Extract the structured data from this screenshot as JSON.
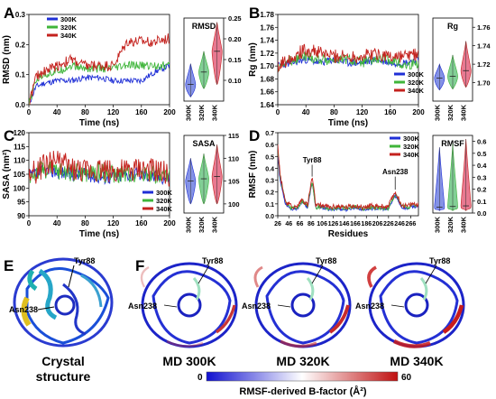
{
  "figure": {
    "panel_letters": [
      "A",
      "B",
      "C",
      "D",
      "E",
      "F"
    ],
    "colors": {
      "300K": "#1f2fd6",
      "320K": "#3fb53a",
      "340K": "#c4221e"
    },
    "violin_colors": {
      "300K": "#6f7fe0",
      "320K": "#6cc784",
      "340K": "#e4627e"
    }
  },
  "chart_data": [
    {
      "id": "A_line",
      "type": "line",
      "xlabel": "Time (ns)",
      "ylabel": "RMSD (nm)",
      "xlim": [
        0,
        200
      ],
      "ylim": [
        0,
        0.3
      ],
      "xticks": [
        0,
        40,
        80,
        120,
        160,
        200
      ],
      "yticks": [
        0.0,
        0.1,
        0.2,
        0.3
      ],
      "legend": [
        "300K",
        "320K",
        "340K"
      ],
      "series": [
        {
          "name": "300K",
          "x": [
            0,
            10,
            20,
            40,
            60,
            80,
            100,
            120,
            140,
            160,
            180,
            200
          ],
          "values": [
            0.0,
            0.06,
            0.07,
            0.08,
            0.08,
            0.09,
            0.09,
            0.08,
            0.08,
            0.08,
            0.11,
            0.13
          ]
        },
        {
          "name": "320K",
          "x": [
            0,
            10,
            20,
            40,
            60,
            80,
            100,
            120,
            140,
            160,
            180,
            200
          ],
          "values": [
            0.0,
            0.08,
            0.1,
            0.11,
            0.13,
            0.12,
            0.12,
            0.12,
            0.13,
            0.13,
            0.13,
            0.13
          ]
        },
        {
          "name": "340K",
          "x": [
            0,
            10,
            20,
            40,
            60,
            80,
            100,
            120,
            140,
            160,
            180,
            200
          ],
          "values": [
            0.0,
            0.09,
            0.11,
            0.13,
            0.15,
            0.13,
            0.13,
            0.13,
            0.21,
            0.21,
            0.21,
            0.22
          ]
        }
      ]
    },
    {
      "id": "A_violin",
      "type": "violin",
      "title": "RMSD",
      "categories": [
        "300K",
        "320K",
        "340K"
      ],
      "ylim": [
        0.05,
        0.25
      ],
      "yticks": [
        0.1,
        0.15,
        0.2,
        0.25
      ],
      "medians": [
        0.09,
        0.12,
        0.17
      ],
      "mins": [
        0.06,
        0.08,
        0.09
      ],
      "maxs": [
        0.14,
        0.17,
        0.24
      ]
    },
    {
      "id": "B_line",
      "type": "line",
      "xlabel": "Time (ns)",
      "ylabel": "Rg (nm)",
      "xlim": [
        0,
        200
      ],
      "ylim": [
        1.64,
        1.78
      ],
      "xticks": [
        0,
        40,
        80,
        120,
        160,
        200
      ],
      "yticks": [
        1.64,
        1.66,
        1.68,
        1.7,
        1.72,
        1.74,
        1.76,
        1.78
      ],
      "legend": [
        "300K",
        "320K",
        "340K"
      ],
      "series": [
        {
          "name": "300K",
          "x": [
            0,
            20,
            40,
            60,
            80,
            100,
            120,
            140,
            160,
            180,
            200
          ],
          "values": [
            1.7,
            1.705,
            1.71,
            1.705,
            1.71,
            1.705,
            1.705,
            1.71,
            1.705,
            1.705,
            1.71
          ]
        },
        {
          "name": "320K",
          "x": [
            0,
            20,
            40,
            60,
            80,
            100,
            120,
            140,
            160,
            180,
            200
          ],
          "values": [
            1.7,
            1.71,
            1.715,
            1.71,
            1.71,
            1.71,
            1.705,
            1.71,
            1.71,
            1.7,
            1.705
          ]
        },
        {
          "name": "340K",
          "x": [
            0,
            20,
            40,
            60,
            80,
            100,
            120,
            140,
            160,
            180,
            200
          ],
          "values": [
            1.7,
            1.715,
            1.725,
            1.72,
            1.715,
            1.715,
            1.715,
            1.72,
            1.715,
            1.715,
            1.72
          ]
        }
      ]
    },
    {
      "id": "B_violin",
      "type": "violin",
      "title": "Rg",
      "categories": [
        "300K",
        "320K",
        "340K"
      ],
      "ylim": [
        1.68,
        1.77
      ],
      "yticks": [
        1.7,
        1.72,
        1.74,
        1.76
      ],
      "medians": [
        1.705,
        1.707,
        1.713
      ],
      "mins": [
        1.692,
        1.693,
        1.695
      ],
      "maxs": [
        1.72,
        1.73,
        1.745
      ]
    },
    {
      "id": "C_line",
      "type": "line",
      "xlabel": "Time (ns)",
      "ylabel": "SASA (nm²)",
      "xlim": [
        0,
        200
      ],
      "ylim": [
        90,
        120
      ],
      "xticks": [
        0,
        40,
        80,
        120,
        160,
        200
      ],
      "yticks": [
        90,
        95,
        100,
        105,
        110,
        115,
        120
      ],
      "legend": [
        "300K",
        "320K",
        "340K"
      ],
      "series": [
        {
          "name": "300K",
          "x": [
            0,
            20,
            40,
            60,
            80,
            100,
            120,
            140,
            160,
            180,
            200
          ],
          "values": [
            104,
            106,
            106,
            105,
            105,
            104,
            104,
            105,
            105,
            104,
            104
          ]
        },
        {
          "name": "320K",
          "x": [
            0,
            20,
            40,
            60,
            80,
            100,
            120,
            140,
            160,
            180,
            200
          ],
          "values": [
            104,
            107,
            106,
            106,
            105,
            106,
            105,
            105,
            106,
            105,
            104
          ]
        },
        {
          "name": "340K",
          "x": [
            0,
            20,
            40,
            60,
            80,
            100,
            120,
            140,
            160,
            180,
            200
          ],
          "values": [
            104,
            108,
            110,
            107,
            106,
            107,
            106,
            106,
            107,
            106,
            105
          ]
        }
      ]
    },
    {
      "id": "C_violin",
      "type": "violin",
      "title": "SASA",
      "categories": [
        "300K",
        "320K",
        "340K"
      ],
      "ylim": [
        98,
        115
      ],
      "yticks": [
        100,
        105,
        110,
        115
      ],
      "medians": [
        105,
        105.5,
        106
      ],
      "mins": [
        100,
        100,
        100
      ],
      "maxs": [
        110,
        111,
        113
      ]
    },
    {
      "id": "D_line",
      "type": "line",
      "xlabel": "Residues",
      "ylabel": "RMSF (nm)",
      "xlim": [
        26,
        280
      ],
      "ylim": [
        0,
        0.7
      ],
      "xticks": [
        26,
        46,
        66,
        86,
        106,
        126,
        146,
        166,
        186,
        206,
        226,
        246,
        266
      ],
      "yticks": [
        0.0,
        0.1,
        0.2,
        0.3,
        0.4,
        0.5,
        0.6,
        0.7
      ],
      "legend": [
        "300K",
        "320K",
        "340K"
      ],
      "annotations": [
        "Tyr88",
        "Asn238"
      ],
      "series": [
        {
          "name": "300K",
          "x": [
            26,
            30,
            40,
            50,
            60,
            70,
            80,
            88,
            95,
            106,
            120,
            135,
            150,
            166,
            180,
            195,
            210,
            225,
            238,
            250,
            260,
            270,
            280
          ],
          "values": [
            0.55,
            0.3,
            0.1,
            0.06,
            0.05,
            0.12,
            0.07,
            0.28,
            0.06,
            0.07,
            0.05,
            0.06,
            0.05,
            0.07,
            0.05,
            0.06,
            0.06,
            0.05,
            0.17,
            0.07,
            0.06,
            0.08,
            0.07
          ]
        },
        {
          "name": "320K",
          "x": [
            26,
            30,
            40,
            50,
            60,
            70,
            80,
            88,
            95,
            106,
            120,
            135,
            150,
            166,
            180,
            195,
            210,
            225,
            238,
            250,
            260,
            270,
            280
          ],
          "values": [
            0.58,
            0.33,
            0.11,
            0.07,
            0.06,
            0.13,
            0.08,
            0.3,
            0.07,
            0.08,
            0.06,
            0.07,
            0.06,
            0.08,
            0.06,
            0.07,
            0.07,
            0.06,
            0.18,
            0.08,
            0.07,
            0.09,
            0.08
          ]
        },
        {
          "name": "340K",
          "x": [
            26,
            30,
            40,
            50,
            60,
            70,
            80,
            88,
            95,
            106,
            120,
            135,
            150,
            166,
            180,
            195,
            210,
            225,
            238,
            250,
            260,
            270,
            280
          ],
          "values": [
            0.62,
            0.35,
            0.12,
            0.08,
            0.07,
            0.14,
            0.09,
            0.33,
            0.08,
            0.09,
            0.07,
            0.08,
            0.07,
            0.09,
            0.07,
            0.08,
            0.08,
            0.07,
            0.2,
            0.09,
            0.08,
            0.1,
            0.09
          ]
        }
      ]
    },
    {
      "id": "D_violin",
      "type": "violin",
      "title": "RMSF",
      "categories": [
        "300K",
        "320K",
        "340K"
      ],
      "ylim": [
        0,
        0.65
      ],
      "yticks": [
        0.0,
        0.1,
        0.2,
        0.3,
        0.4,
        0.5,
        0.6
      ],
      "medians": [
        0.05,
        0.055,
        0.06
      ],
      "mins": [
        0.02,
        0.02,
        0.02
      ],
      "maxs": [
        0.55,
        0.58,
        0.62
      ]
    }
  ],
  "structures": {
    "crystal_label": "Crystal structure",
    "md_labels": [
      "MD 300K",
      "MD 320K",
      "MD 340K"
    ],
    "residue_labels": [
      "Tyr88",
      "Asn238"
    ]
  },
  "colorbar": {
    "min_label": "0",
    "max_label": "60",
    "title": "RMSF-derived B-factor (Å²)",
    "colors": [
      "#1010d0",
      "#ffffff",
      "#c01010"
    ]
  }
}
